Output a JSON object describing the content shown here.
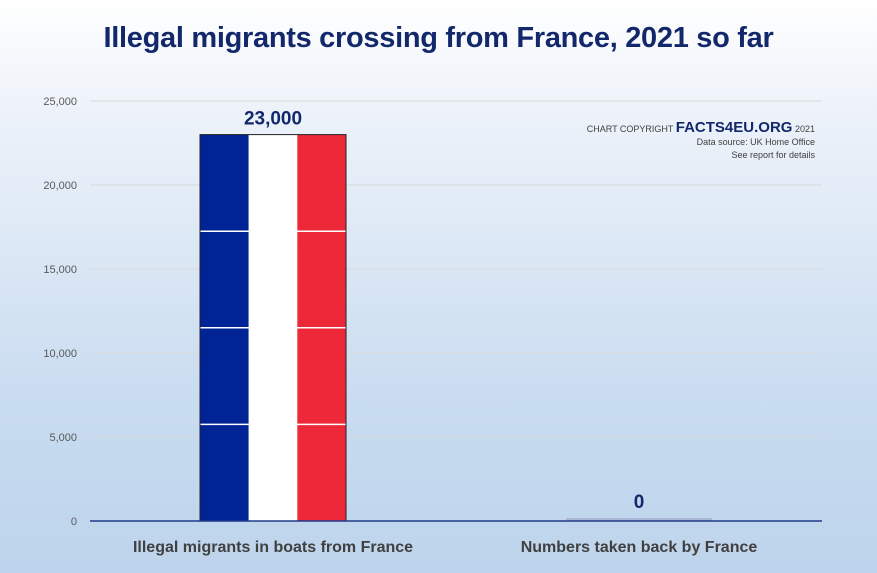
{
  "chart_data": {
    "type": "bar",
    "title": "Illegal migrants crossing from France, 2021 so far",
    "categories": [
      "Illegal migrants in boats from France",
      "Numbers taken back by France"
    ],
    "values": [
      23000,
      0
    ],
    "data_labels": [
      "23,000",
      "0"
    ],
    "ylim": [
      0,
      25000
    ],
    "yticks": [
      0,
      5000,
      10000,
      15000,
      20000,
      25000
    ],
    "ytick_labels": [
      "0",
      "5,000",
      "10,000",
      "15,000",
      "20,000",
      "25,000"
    ],
    "grid": true,
    "bar_fill": "french-flag",
    "colors": {
      "flag_blue": "#002395",
      "flag_white": "#ffffff",
      "flag_red": "#ed2939",
      "title": "#13286b",
      "axis": "#1f3a8a",
      "grid": "#d9d9d9",
      "zero_bar": "#aab6d6"
    }
  },
  "credit": {
    "prefix": "CHART COPYRIGHT",
    "brand": "FACTS4EU.ORG",
    "year": "2021",
    "source": "Data source: UK Home Office",
    "note": "See report for details"
  }
}
